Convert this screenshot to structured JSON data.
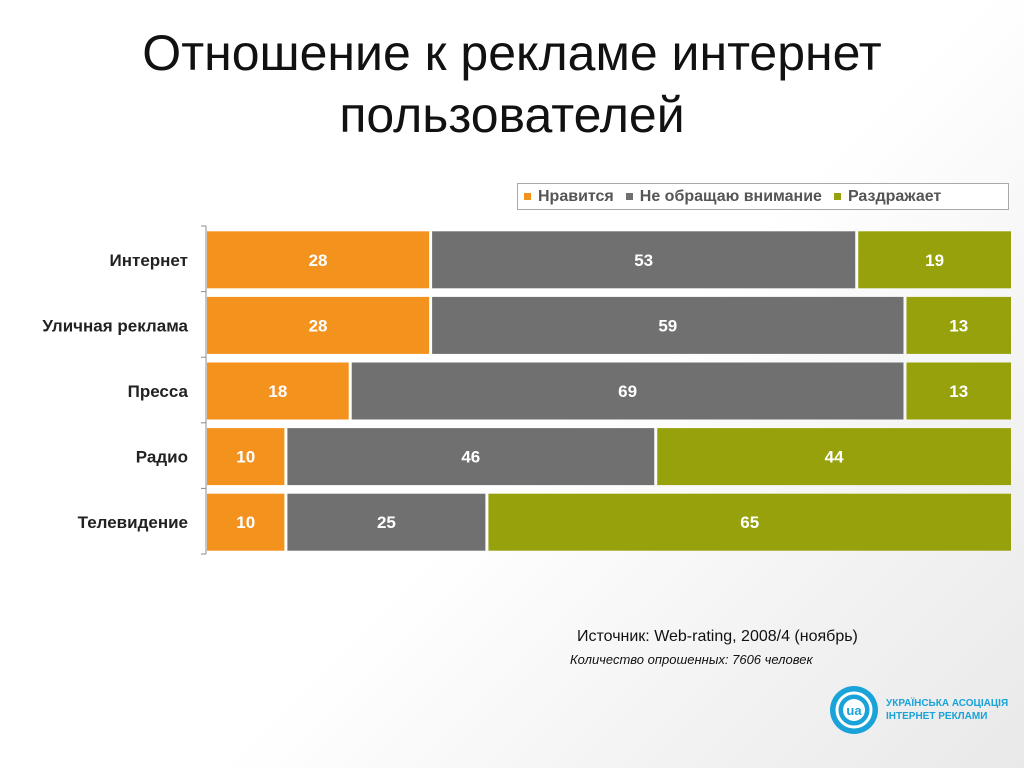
{
  "title_lines": [
    "Отношение к рекламе интернет",
    "пользователей"
  ],
  "chart_data": {
    "type": "bar",
    "orientation": "horizontal",
    "stacked": true,
    "categories": [
      "Интернет",
      "Уличная реклама",
      "Пресса",
      "Радио",
      "Телевидение"
    ],
    "series": [
      {
        "name": "Нравится",
        "color": "#f4921e",
        "values": [
          28,
          28,
          18,
          10,
          10
        ]
      },
      {
        "name": "Не обращаю внимание",
        "color": "#707070",
        "values": [
          53,
          59,
          69,
          46,
          25
        ]
      },
      {
        "name": "Раздражает",
        "color": "#97a10b",
        "values": [
          19,
          13,
          13,
          44,
          65
        ]
      }
    ],
    "xlim": [
      0,
      100
    ],
    "legend_position": "top-right",
    "grid": false
  },
  "legend": {
    "item0": "Нравится",
    "item1": "Не обращаю внимание",
    "item2": "Раздражает"
  },
  "source": "Источник: Web-rating, 2008/4 (ноябрь)",
  "respondents": "Количество опрошенных: 7606 человек",
  "logo": {
    "line1": "УКРАЇНСЬКА АСОЦІАЦІЯ",
    "line2": "ІНТЕРНЕТ РЕКЛАМИ",
    "mark_text": "ua",
    "color": "#1aa3d9"
  }
}
